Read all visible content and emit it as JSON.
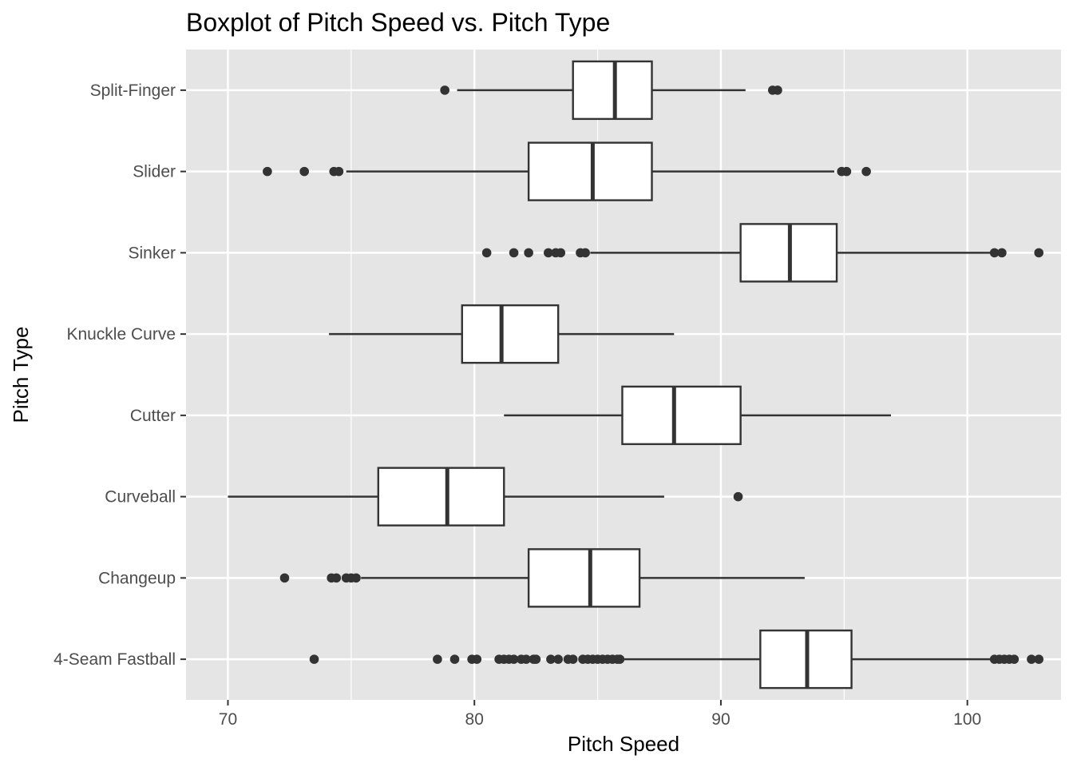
{
  "chart_data": {
    "type": "boxplot",
    "orientation": "horizontal",
    "title": "Boxplot of Pitch Speed vs. Pitch Type",
    "xlabel": "Pitch Speed",
    "ylabel": "Pitch Type",
    "xlim": [
      68.3,
      103.8
    ],
    "x_ticks": [
      70,
      80,
      90,
      100
    ],
    "grid": true,
    "colors": {
      "panel": "#e5e5e5",
      "grid": "#ffffff",
      "box_fill": "#ffffff",
      "stroke": "#333333",
      "outlier": "#333333",
      "tick_label": "#4d4d4d"
    },
    "categories": [
      "4-Seam Fastball",
      "Changeup",
      "Curveball",
      "Cutter",
      "Knuckle Curve",
      "Sinker",
      "Slider",
      "Split-Finger"
    ],
    "boxes": [
      {
        "category": "4-Seam Fastball",
        "whisker_low": 86.0,
        "q1": 91.6,
        "median": 93.5,
        "q3": 95.3,
        "whisker_high": 101.0,
        "outliers": [
          73.5,
          78.5,
          79.2,
          79.9,
          80.1,
          81.0,
          81.2,
          81.4,
          81.6,
          81.9,
          82.1,
          82.4,
          82.5,
          83.1,
          83.4,
          83.8,
          84.0,
          84.4,
          84.6,
          84.8,
          85.0,
          85.2,
          85.4,
          85.6,
          85.8,
          85.9,
          101.1,
          101.3,
          101.5,
          101.7,
          101.9,
          102.6,
          102.9
        ]
      },
      {
        "category": "Changeup",
        "whisker_low": 75.4,
        "q1": 82.2,
        "median": 84.7,
        "q3": 86.7,
        "whisker_high": 93.4,
        "outliers": [
          72.3,
          74.2,
          74.4,
          74.8,
          75.0,
          75.2
        ]
      },
      {
        "category": "Curveball",
        "whisker_low": 70.0,
        "q1": 76.1,
        "median": 78.9,
        "q3": 81.2,
        "whisker_high": 87.7,
        "outliers": [
          90.7
        ]
      },
      {
        "category": "Cutter",
        "whisker_low": 81.2,
        "q1": 86.0,
        "median": 88.1,
        "q3": 90.8,
        "whisker_high": 96.9,
        "outliers": []
      },
      {
        "category": "Knuckle Curve",
        "whisker_low": 74.1,
        "q1": 79.5,
        "median": 81.1,
        "q3": 83.4,
        "whisker_high": 88.1,
        "outliers": []
      },
      {
        "category": "Sinker",
        "whisker_low": 84.7,
        "q1": 90.8,
        "median": 92.8,
        "q3": 94.7,
        "whisker_high": 101.0,
        "outliers": [
          80.5,
          81.6,
          82.2,
          83.0,
          83.3,
          83.5,
          84.3,
          84.5,
          101.1,
          101.4,
          102.9
        ]
      },
      {
        "category": "Slider",
        "whisker_low": 74.8,
        "q1": 82.2,
        "median": 84.8,
        "q3": 87.2,
        "whisker_high": 94.6,
        "outliers": [
          71.6,
          73.1,
          74.3,
          74.5,
          94.9,
          95.1,
          95.9
        ]
      },
      {
        "category": "Split-Finger",
        "whisker_low": 79.3,
        "q1": 84.0,
        "median": 85.7,
        "q3": 87.2,
        "whisker_high": 91.0,
        "outliers": [
          78.8,
          92.1,
          92.3
        ]
      }
    ]
  }
}
